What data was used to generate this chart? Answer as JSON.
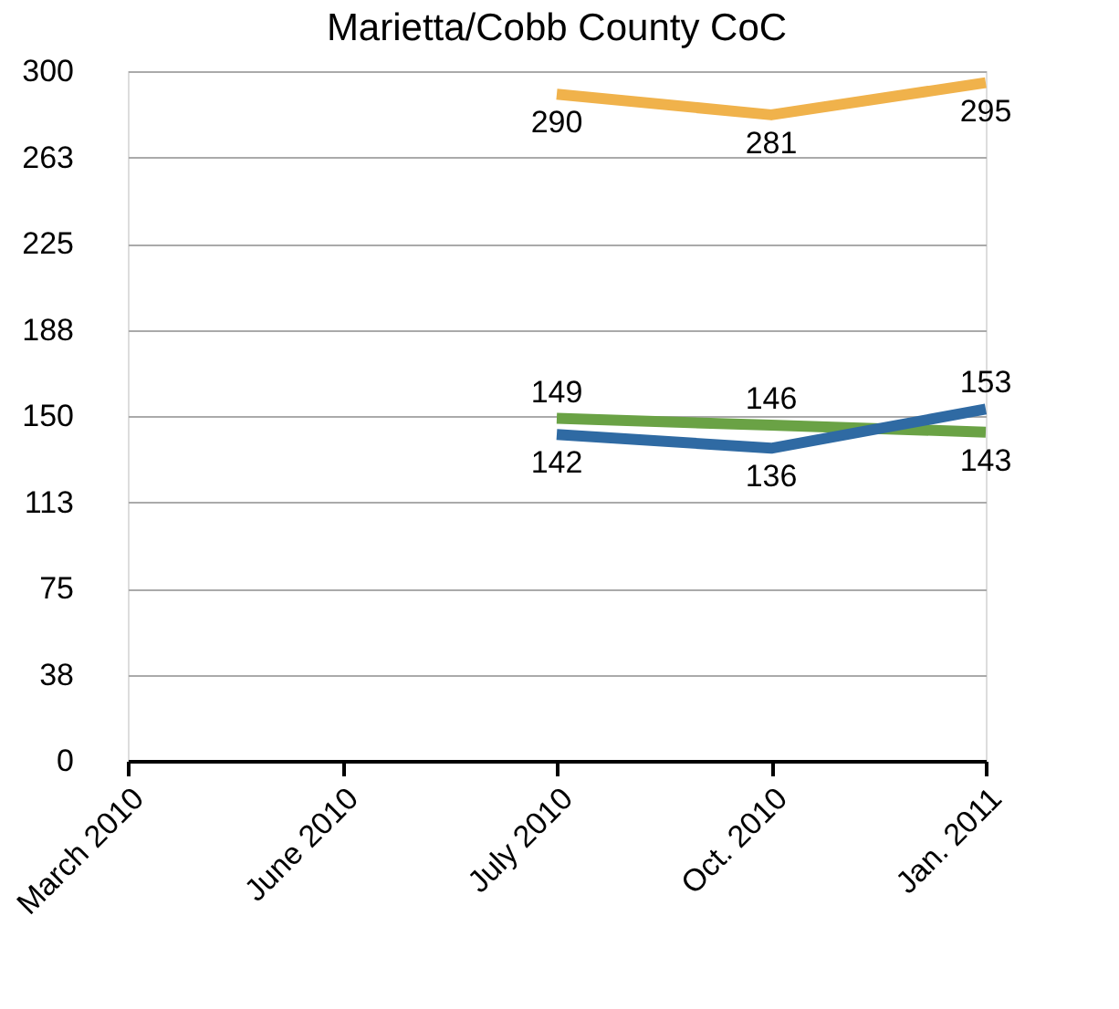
{
  "chart_data": {
    "type": "line",
    "title": "Marietta/Cobb County CoC",
    "categories": [
      "March 2010",
      "June 2010",
      "July 2010",
      "Oct. 2010",
      "Jan. 2011"
    ],
    "series": [
      {
        "color": "#f0b24b",
        "values": [
          null,
          null,
          290,
          281,
          295
        ]
      },
      {
        "color": "#6aa245",
        "values": [
          null,
          null,
          149,
          146,
          143
        ]
      },
      {
        "color": "#2f6aa3",
        "values": [
          null,
          null,
          142,
          136,
          153
        ]
      }
    ],
    "ylim": [
      0,
      300
    ],
    "yticks": [
      0,
      {
        "value": 37.5,
        "label": "38"
      },
      75,
      {
        "value": 112.5,
        "label": "113"
      },
      150,
      {
        "value": 187.5,
        "label": "188"
      },
      225,
      {
        "value": 262.5,
        "label": "263"
      },
      300
    ],
    "grid": "y",
    "data_labels": true,
    "marker": "none",
    "line_style": "solid"
  }
}
